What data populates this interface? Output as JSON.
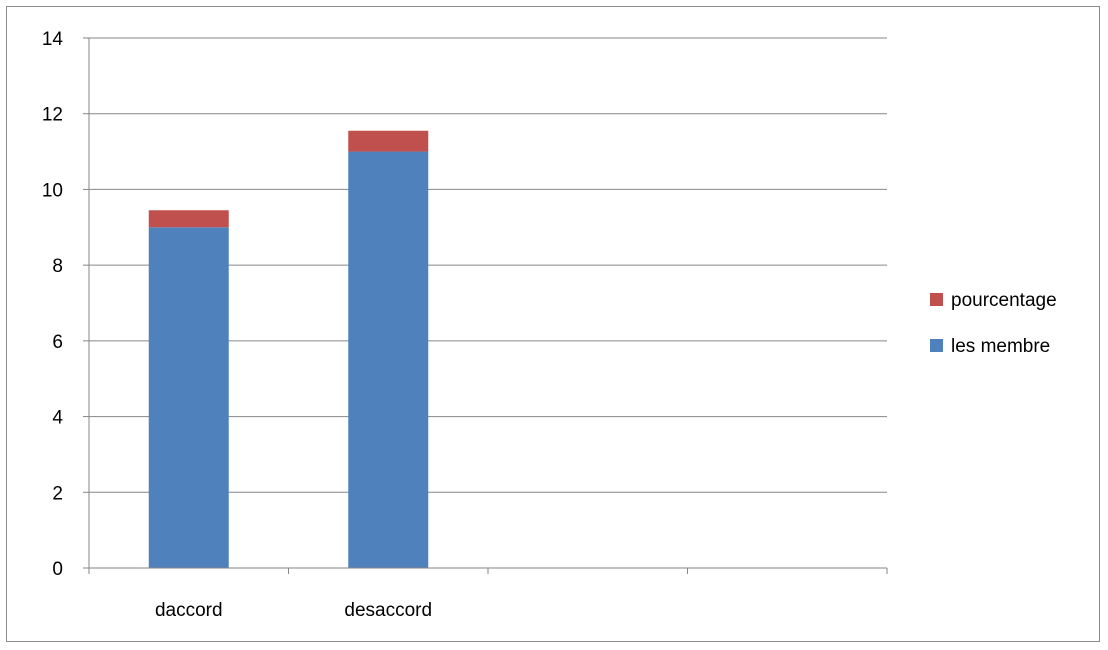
{
  "chart_data": {
    "type": "bar",
    "stacked": true,
    "categories": [
      "daccord",
      "desaccord",
      "",
      ""
    ],
    "series": [
      {
        "name": "les membre",
        "values": [
          9,
          11,
          null,
          null
        ],
        "color": "#4f81bd"
      },
      {
        "name": "pourcentage",
        "values": [
          0.45,
          0.55,
          null,
          null
        ],
        "color": "#c0504d"
      }
    ],
    "ylim": [
      0,
      14
    ],
    "yticks": [
      0,
      2,
      4,
      6,
      8,
      10,
      12,
      14
    ],
    "grid": true,
    "legend_position": "right",
    "legend_order": [
      "pourcentage",
      "les membre"
    ],
    "title": "",
    "xlabel": "",
    "ylabel": ""
  }
}
